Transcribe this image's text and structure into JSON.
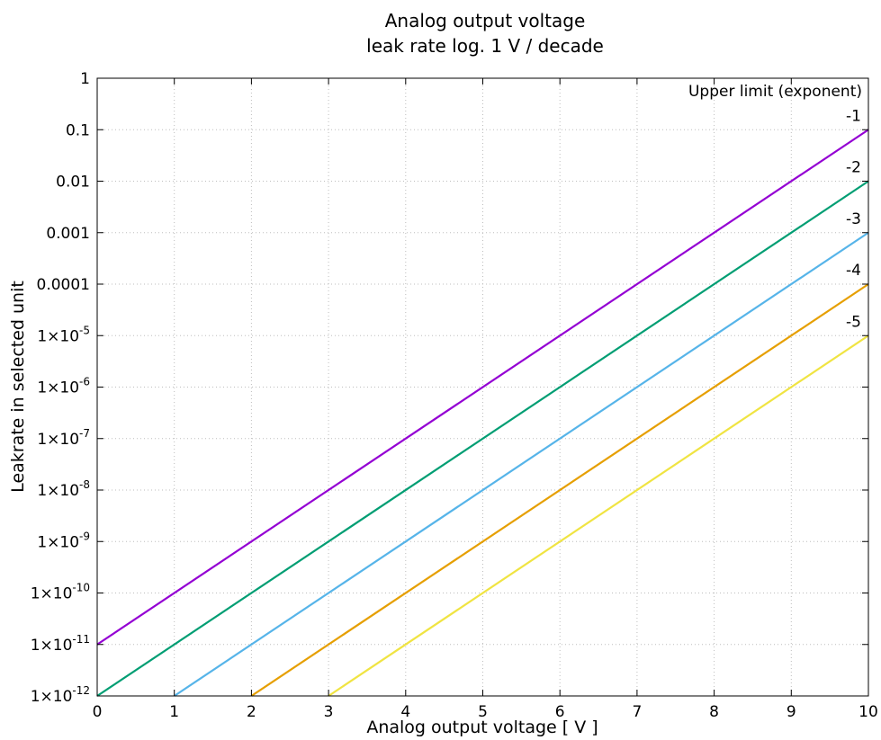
{
  "chart_data": {
    "type": "line",
    "title": [
      "Analog output voltage",
      "leak rate log. 1 V / decade"
    ],
    "xlabel": "Analog output voltage [ V ]",
    "ylabel": "Leakrate in selected unit",
    "xlim": [
      0,
      10
    ],
    "ylim": [
      1e-12,
      1
    ],
    "yscale": "log",
    "grid": true,
    "xticks": [
      {
        "value": 0,
        "label": "0"
      },
      {
        "value": 1,
        "label": "1"
      },
      {
        "value": 2,
        "label": "2"
      },
      {
        "value": 3,
        "label": "3"
      },
      {
        "value": 4,
        "label": "4"
      },
      {
        "value": 5,
        "label": "5"
      },
      {
        "value": 6,
        "label": "6"
      },
      {
        "value": 7,
        "label": "7"
      },
      {
        "value": 8,
        "label": "8"
      },
      {
        "value": 9,
        "label": "9"
      },
      {
        "value": 10,
        "label": "10"
      }
    ],
    "yticks": [
      {
        "value": 1,
        "label": "1"
      },
      {
        "value": 0.1,
        "label": "0.1"
      },
      {
        "value": 0.01,
        "label": "0.01"
      },
      {
        "value": 0.001,
        "label": "0.001"
      },
      {
        "value": 0.0001,
        "label": "0.0001"
      },
      {
        "value": 1e-05,
        "label": "1×10",
        "sup": "-5"
      },
      {
        "value": 1e-06,
        "label": "1×10",
        "sup": "-6"
      },
      {
        "value": 1e-07,
        "label": "1×10",
        "sup": "-7"
      },
      {
        "value": 1e-08,
        "label": "1×10",
        "sup": "-8"
      },
      {
        "value": 1e-09,
        "label": "1×10",
        "sup": "-9"
      },
      {
        "value": 1e-10,
        "label": "1×10",
        "sup": "-10"
      },
      {
        "value": 1e-11,
        "label": "1×10",
        "sup": "-11"
      },
      {
        "value": 1e-12,
        "label": "1×10",
        "sup": "-12"
      }
    ],
    "legend": {
      "title": "Upper limit (exponent)",
      "placement": "right"
    },
    "series": [
      {
        "name": "-1",
        "color": "#9400d3",
        "x": [
          0,
          10
        ],
        "y": [
          1e-11,
          0.1
        ]
      },
      {
        "name": "-2",
        "color": "#009e73",
        "x": [
          0,
          10
        ],
        "y": [
          1e-12,
          0.01
        ]
      },
      {
        "name": "-3",
        "color": "#56b4e9",
        "x": [
          1,
          10
        ],
        "y": [
          1e-12,
          0.001
        ]
      },
      {
        "name": "-4",
        "color": "#e69f00",
        "x": [
          2,
          10
        ],
        "y": [
          1e-12,
          0.0001
        ]
      },
      {
        "name": "-5",
        "color": "#f0e442",
        "x": [
          3,
          10
        ],
        "y": [
          1e-12,
          1e-05
        ]
      }
    ]
  }
}
